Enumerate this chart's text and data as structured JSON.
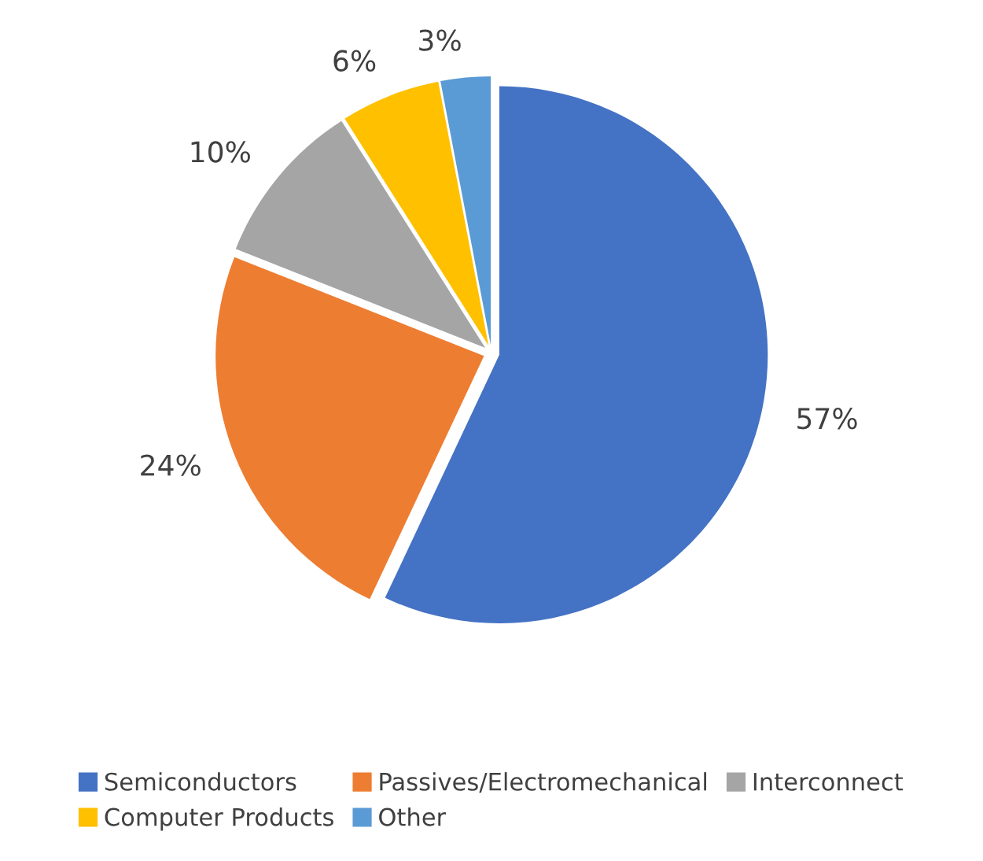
{
  "chart_data": {
    "type": "pie",
    "categories": [
      "Semiconductors",
      "Passives/Electromechanical",
      "Interconnect",
      "Computer Products",
      "Other"
    ],
    "values": [
      57,
      24,
      10,
      6,
      3
    ],
    "colors": [
      "#4472c4",
      "#ed7d31",
      "#a5a5a5",
      "#ffc000",
      "#5b9bd5"
    ],
    "value_labels": [
      "57%",
      "24%",
      "10%",
      "6%",
      "3%"
    ],
    "legend": "bottom"
  }
}
